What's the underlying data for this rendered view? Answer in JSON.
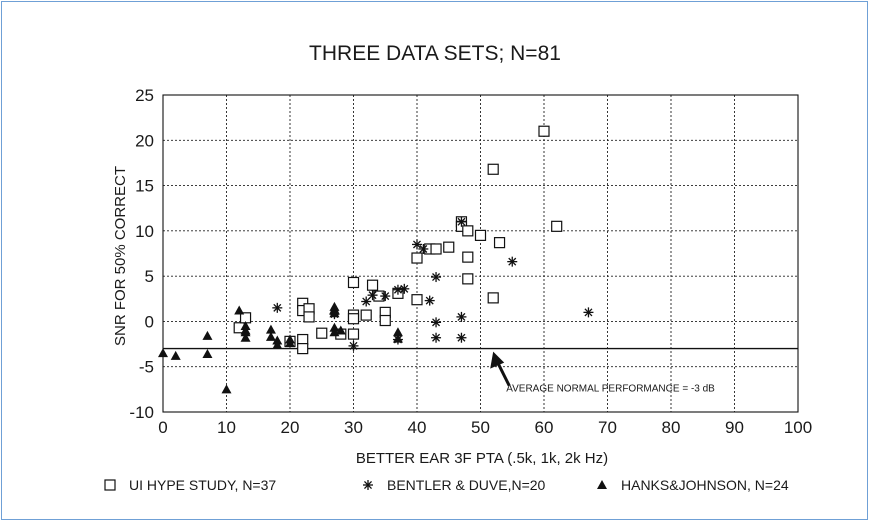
{
  "chart_data": {
    "type": "scatter",
    "title": "THREE DATA SETS;  N=81",
    "xlabel": "BETTER EAR 3F PTA (.5k, 1k, 2k Hz)",
    "ylabel": "SNR FOR 50% CORRECT",
    "xlim": [
      0,
      100
    ],
    "ylim": [
      -10,
      25
    ],
    "xticks": [
      0,
      10,
      20,
      30,
      40,
      50,
      60,
      70,
      80,
      90,
      100
    ],
    "yticks": [
      -10,
      -5,
      0,
      5,
      10,
      15,
      20,
      25
    ],
    "grid": true,
    "legend_position": "bottom",
    "reference_line": {
      "y": -3,
      "label": "AVERAGE NORMAL PERFORMANCE = -3 dB",
      "arrow_x": 52
    },
    "series": [
      {
        "name": "UI HYPE STUDY, N=37",
        "marker": "open-square",
        "points": [
          [
            12,
            -0.7
          ],
          [
            13,
            0.4
          ],
          [
            20,
            -2.2
          ],
          [
            22,
            2.0
          ],
          [
            22,
            1.2
          ],
          [
            22,
            -2.0
          ],
          [
            22,
            -3.0
          ],
          [
            23,
            1.4
          ],
          [
            23,
            0.5
          ],
          [
            25,
            -1.3
          ],
          [
            28,
            -1.4
          ],
          [
            30,
            4.3
          ],
          [
            30,
            0.7
          ],
          [
            30,
            0.3
          ],
          [
            30,
            -1.4
          ],
          [
            32,
            0.7
          ],
          [
            33,
            4.0
          ],
          [
            34,
            2.8
          ],
          [
            35,
            1.0
          ],
          [
            35,
            0.1
          ],
          [
            40,
            7.0
          ],
          [
            40,
            2.4
          ],
          [
            42,
            8.0
          ],
          [
            43,
            8.0
          ],
          [
            47,
            11.0
          ],
          [
            47,
            10.5
          ],
          [
            48,
            10.0
          ],
          [
            48,
            7.1
          ],
          [
            48,
            4.7
          ],
          [
            50,
            9.5
          ],
          [
            52,
            16.8
          ],
          [
            52,
            2.6
          ],
          [
            53,
            8.7
          ],
          [
            60,
            21.0
          ],
          [
            62,
            10.5
          ],
          [
            37,
            3.1
          ],
          [
            45,
            8.2
          ]
        ]
      },
      {
        "name": "BENTLER & DUVE,N=20",
        "marker": "asterisk",
        "points": [
          [
            18,
            1.5
          ],
          [
            30,
            -2.7
          ],
          [
            32,
            2.2
          ],
          [
            33,
            2.9
          ],
          [
            35,
            2.8
          ],
          [
            37,
            3.5
          ],
          [
            37,
            -2.0
          ],
          [
            40,
            8.5
          ],
          [
            42,
            2.3
          ],
          [
            43,
            4.9
          ],
          [
            43,
            -0.1
          ],
          [
            43,
            -1.8
          ],
          [
            47,
            11.0
          ],
          [
            47,
            0.5
          ],
          [
            47,
            -1.8
          ],
          [
            55,
            6.6
          ],
          [
            67,
            1.0
          ],
          [
            27,
            0.8
          ],
          [
            38,
            3.6
          ],
          [
            41,
            8.0
          ]
        ]
      },
      {
        "name": "HANKS&JOHNSON, N=24",
        "marker": "filled-triangle",
        "points": [
          [
            0,
            -3.5
          ],
          [
            2,
            -3.8
          ],
          [
            7,
            -1.6
          ],
          [
            7,
            -3.6
          ],
          [
            10,
            -7.5
          ],
          [
            12,
            1.2
          ],
          [
            13,
            -0.5
          ],
          [
            13,
            -1.2
          ],
          [
            13,
            -1.8
          ],
          [
            17,
            -0.9
          ],
          [
            17,
            -1.7
          ],
          [
            18,
            -2.1
          ],
          [
            18,
            -2.6
          ],
          [
            20,
            -2.4
          ],
          [
            27,
            1.3
          ],
          [
            27,
            0.9
          ],
          [
            27,
            -0.7
          ],
          [
            28,
            -1.0
          ],
          [
            37,
            -1.2
          ],
          [
            37,
            -1.9
          ],
          [
            27,
            1.6
          ],
          [
            20,
            -2.0
          ],
          [
            13,
            -1.0
          ],
          [
            27,
            -1.2
          ]
        ]
      }
    ]
  }
}
